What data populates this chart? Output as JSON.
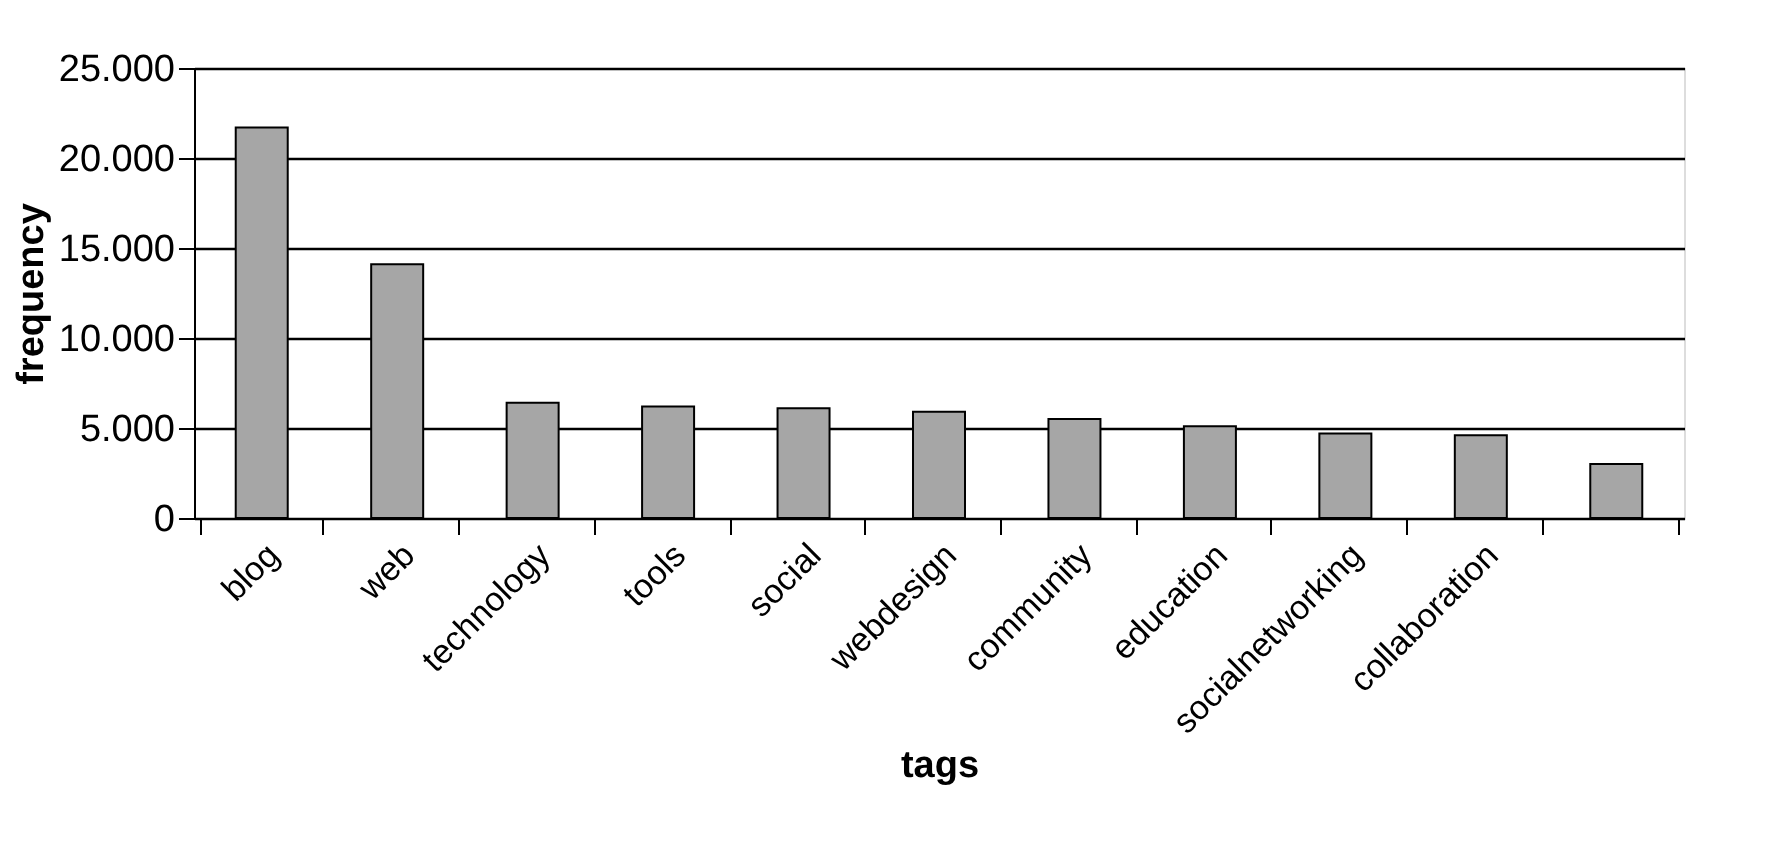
{
  "chart_data": {
    "type": "bar",
    "xlabel": "tags",
    "ylabel": "frequency",
    "categories": [
      "blog",
      "web",
      "technology",
      "tools",
      "social",
      "webdesign",
      "community",
      "education",
      "socialnetworking",
      "collaboration",
      null
    ],
    "values": [
      21700,
      14100,
      6400,
      6200,
      6100,
      5900,
      5500,
      5100,
      4700,
      4600,
      3000
    ],
    "color": "#a6a6a6",
    "ylim": [
      0,
      25000
    ],
    "yticks": [
      0,
      {
        "value": 5000,
        "label": "5.000"
      },
      {
        "value": 10000,
        "label": "10.000"
      },
      {
        "value": 15000,
        "label": "15.000"
      },
      {
        "value": 20000,
        "label": "20.000"
      },
      {
        "value": 25000,
        "label": "25.000"
      }
    ],
    "grid": "y",
    "legend": false
  }
}
